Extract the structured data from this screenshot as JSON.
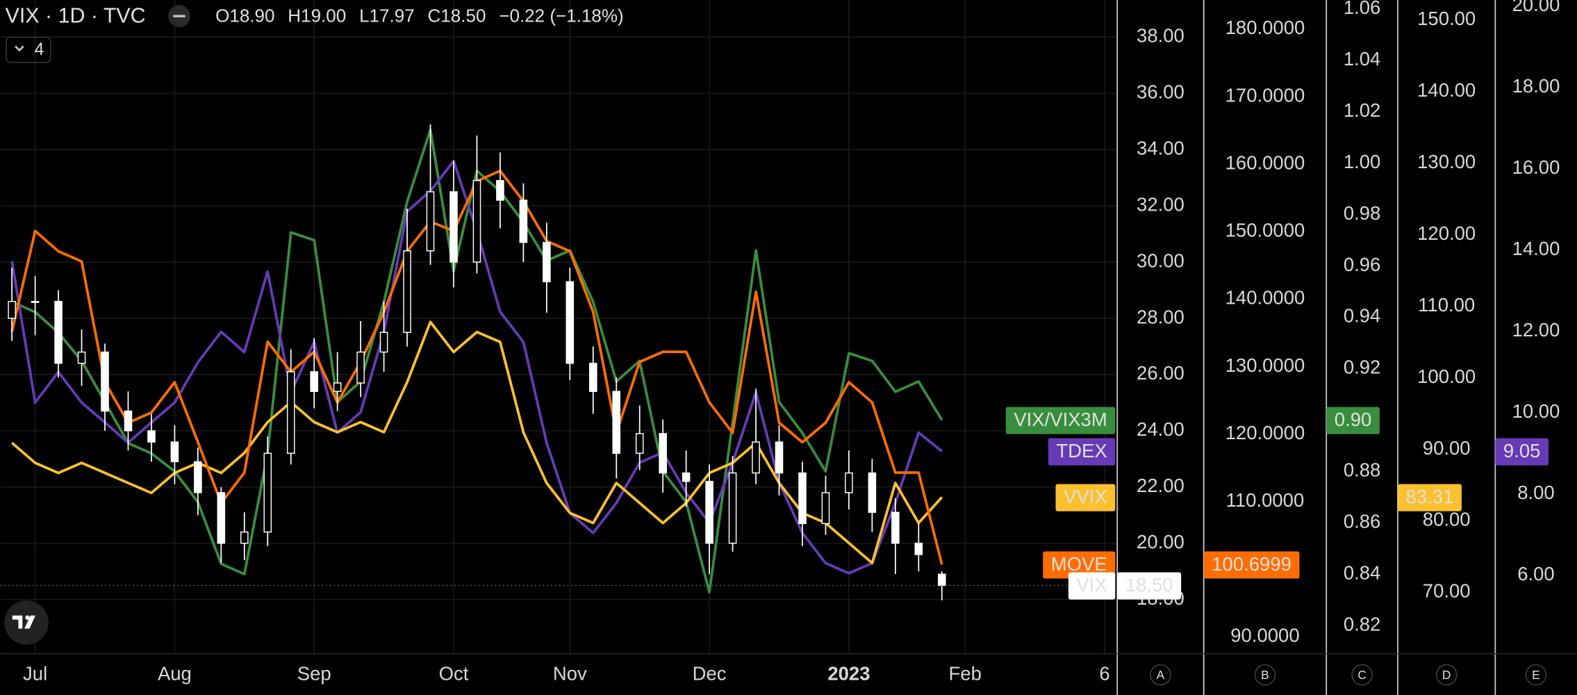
{
  "chart_data": {
    "type": "candlestick",
    "title": "VIX · 1D · TVC",
    "legend_values": [
      "O18.90",
      "H19.00",
      "L17.97",
      "C18.50",
      "−0.22 (−1.18%)"
    ],
    "indicators": 4,
    "categories": [
      null,
      "Jul",
      null,
      null,
      null,
      null,
      null,
      "Aug",
      null,
      null,
      null,
      null,
      null,
      "Sep",
      null,
      null,
      null,
      null,
      null,
      "Oct",
      null,
      null,
      null,
      null,
      "Nov",
      null,
      null,
      null,
      null,
      null,
      "Dec",
      null,
      null,
      null,
      null,
      null,
      "2023",
      null,
      null,
      null,
      null,
      "Feb",
      null,
      null,
      null,
      null,
      null,
      "6"
    ],
    "axes": [
      {
        "letter": "A",
        "ylim": [
          16.07,
          39.32
        ],
        "yticks": [
          {
            "value": 18,
            "label": "18.00"
          },
          {
            "value": 20,
            "label": "20.00"
          },
          {
            "value": 22,
            "label": "22.00"
          },
          {
            "value": 24,
            "label": "24.00"
          },
          {
            "value": 26,
            "label": "26.00"
          },
          {
            "value": 28,
            "label": "28.00"
          },
          {
            "value": 30,
            "label": "30.00"
          },
          {
            "value": 32,
            "label": "32.00"
          },
          {
            "value": 34,
            "label": "34.00"
          },
          {
            "value": 36,
            "label": "36.00"
          },
          {
            "value": 38,
            "label": "38.00"
          }
        ]
      },
      {
        "letter": "B",
        "ylim": [
          87.47,
          184.32
        ],
        "yticks": [
          {
            "value": 90,
            "label": "90.0000"
          },
          {
            "value": 110,
            "label": "110.0000"
          },
          {
            "value": 120,
            "label": "120.0000"
          },
          {
            "value": 130,
            "label": "130.0000"
          },
          {
            "value": 140,
            "label": "140.0000"
          },
          {
            "value": 150,
            "label": "150.0000"
          },
          {
            "value": 160,
            "label": "160.0000"
          },
          {
            "value": 170,
            "label": "170.0000"
          },
          {
            "value": 180,
            "label": "180.0000"
          }
        ]
      },
      {
        "letter": "C",
        "ylim": [
          0.809,
          1.0635
        ],
        "yticks": [
          {
            "value": 0.82,
            "label": "0.82"
          },
          {
            "value": 0.84,
            "label": "0.84"
          },
          {
            "value": 0.86,
            "label": "0.86"
          },
          {
            "value": 0.88,
            "label": "0.88"
          },
          {
            "value": 0.92,
            "label": "0.92"
          },
          {
            "value": 0.94,
            "label": "0.94"
          },
          {
            "value": 0.96,
            "label": "0.96"
          },
          {
            "value": 0.98,
            "label": "0.98"
          },
          {
            "value": 1,
            "label": "1.00"
          },
          {
            "value": 1.02,
            "label": "1.02"
          },
          {
            "value": 1.04,
            "label": "1.04"
          },
          {
            "value": 1.06,
            "label": "1.06"
          }
        ]
      },
      {
        "letter": "D",
        "ylim": [
          61.42,
          152.81
        ],
        "yticks": [
          {
            "value": 70,
            "label": "70.00"
          },
          {
            "value": 80,
            "label": "80.00"
          },
          {
            "value": 90,
            "label": "90.00"
          },
          {
            "value": 100,
            "label": "100.00"
          },
          {
            "value": 110,
            "label": "110.00"
          },
          {
            "value": 120,
            "label": "120.00"
          },
          {
            "value": 130,
            "label": "130.00"
          },
          {
            "value": 140,
            "label": "140.00"
          },
          {
            "value": 150,
            "label": "150.00"
          }
        ]
      },
      {
        "letter": "E",
        "ylim": [
          4.07,
          20.15
        ],
        "yticks": [
          {
            "value": 6,
            "label": "6.00"
          },
          {
            "value": 8,
            "label": "8.00"
          },
          {
            "value": 10,
            "label": "10.00"
          },
          {
            "value": 12,
            "label": "12.00"
          },
          {
            "value": 14,
            "label": "14.00"
          },
          {
            "value": 16,
            "label": "16.00"
          },
          {
            "value": 18,
            "label": "18.00"
          },
          {
            "value": 20,
            "label": "20.00"
          }
        ]
      }
    ],
    "ohlc": {
      "name": "VIX",
      "axis": "A",
      "color": "#ffffff",
      "last_label": "18.50",
      "open": [
        28.0,
        28.6,
        28.6,
        26.4,
        26.8,
        24.7,
        24.0,
        23.6,
        22.9,
        21.8,
        20.0,
        20.4,
        23.2,
        26.1,
        25.4,
        25.7,
        26.8,
        27.5,
        30.4,
        32.5,
        30.0,
        32.9,
        32.2,
        30.7,
        29.3,
        26.4,
        25.4,
        23.2,
        23.9,
        22.5,
        22.2,
        20.0,
        22.5,
        23.6,
        22.5,
        20.7,
        21.8,
        22.5,
        21.1,
        20.0,
        18.9,
        null,
        null,
        null,
        null,
        null,
        null,
        null
      ],
      "high": [
        29.8,
        29.5,
        29.0,
        27.6,
        27.1,
        25.4,
        24.6,
        24.2,
        23.4,
        22.0,
        21.1,
        23.8,
        26.9,
        27.3,
        26.8,
        27.9,
        28.6,
        31.9,
        34.9,
        33.6,
        34.5,
        33.9,
        32.8,
        31.4,
        29.8,
        27.0,
        25.9,
        24.9,
        24.4,
        23.3,
        22.8,
        23.1,
        25.5,
        24.2,
        22.9,
        22.4,
        23.3,
        23.0,
        21.6,
        20.7,
        19.0,
        null,
        null,
        null,
        null,
        null,
        null,
        null
      ],
      "low": [
        27.2,
        27.4,
        25.9,
        25.6,
        24.0,
        23.3,
        22.9,
        22.1,
        21.0,
        19.3,
        19.4,
        19.9,
        22.8,
        24.8,
        24.7,
        25.2,
        26.1,
        27.0,
        29.9,
        29.1,
        29.6,
        31.2,
        30.0,
        28.2,
        25.8,
        24.6,
        22.3,
        22.6,
        21.8,
        21.3,
        18.9,
        19.7,
        22.1,
        21.7,
        19.9,
        20.3,
        21.2,
        20.4,
        18.9,
        19.0,
        17.97,
        null,
        null,
        null,
        null,
        null,
        null,
        null
      ],
      "close": [
        28.6,
        28.6,
        26.4,
        26.8,
        24.7,
        24.0,
        23.6,
        22.9,
        21.8,
        20.0,
        20.4,
        23.2,
        26.1,
        25.4,
        25.7,
        26.8,
        27.5,
        30.4,
        32.5,
        30.0,
        32.9,
        32.2,
        30.7,
        29.3,
        26.4,
        25.4,
        23.2,
        23.9,
        22.5,
        22.2,
        20.0,
        22.5,
        23.6,
        22.5,
        20.7,
        21.8,
        22.5,
        21.1,
        20.0,
        19.6,
        18.5,
        null,
        null,
        null,
        null,
        null,
        null,
        null
      ]
    },
    "series": [
      {
        "name": "VIX/VIX3M",
        "type": "line",
        "axis": "C",
        "color": "#388e3c",
        "last_label": "0.90",
        "values": [
          0.946,
          0.942,
          0.934,
          0.923,
          0.907,
          0.891,
          0.887,
          0.88,
          0.868,
          0.844,
          0.84,
          0.887,
          0.973,
          0.97,
          0.907,
          0.915,
          0.946,
          0.985,
          1.013,
          0.958,
          0.997,
          0.989,
          0.977,
          0.962,
          0.966,
          0.946,
          0.915,
          0.923,
          0.88,
          0.868,
          0.833,
          0.899,
          0.966,
          0.907,
          0.895,
          0.88,
          0.926,
          0.923,
          0.911,
          0.915,
          0.9,
          null,
          null,
          null,
          null,
          null,
          null,
          null
        ]
      },
      {
        "name": "TDEX",
        "type": "line",
        "axis": "E",
        "color": "#673ab7",
        "last_label": "9.05",
        "values": [
          13.72,
          10.25,
          11.0,
          10.25,
          9.76,
          9.26,
          9.76,
          10.25,
          11.24,
          11.99,
          11.49,
          13.47,
          10.5,
          11.74,
          9.51,
          10.01,
          11.99,
          14.95,
          15.45,
          16.19,
          14.46,
          12.48,
          11.74,
          9.26,
          7.53,
          7.04,
          7.78,
          8.77,
          9.02,
          8.03,
          7.29,
          8.77,
          10.5,
          8.28,
          7.04,
          6.3,
          6.05,
          6.3,
          7.78,
          9.51,
          9.05,
          null,
          null,
          null,
          null,
          null,
          null,
          null
        ]
      },
      {
        "name": "VVIX",
        "type": "line",
        "axis": "D",
        "color": "#fbc02d",
        "last_label": "83.31",
        "values": [
          90.9,
          88.1,
          86.7,
          88.1,
          86.7,
          85.3,
          83.9,
          86.7,
          88.1,
          86.7,
          89.5,
          93.8,
          96.6,
          93.8,
          92.4,
          93.8,
          92.4,
          99.4,
          107.8,
          103.6,
          106.4,
          105.0,
          92.4,
          85.3,
          81.1,
          79.7,
          85.3,
          82.5,
          79.7,
          82.5,
          86.7,
          88.1,
          90.9,
          85.3,
          81.1,
          79.7,
          76.9,
          74.1,
          85.3,
          79.7,
          83.31,
          null,
          null,
          null,
          null,
          null,
          null,
          null
        ]
      },
      {
        "name": "MOVE",
        "type": "line",
        "axis": "B",
        "color": "#ff6d00",
        "last_label": "100.6999",
        "values": [
          135.2,
          150.1,
          147.1,
          145.6,
          127.7,
          121.7,
          123.2,
          127.7,
          118.8,
          109.8,
          114.3,
          133.7,
          129.2,
          132.2,
          124.7,
          130.7,
          138.1,
          147.1,
          151.5,
          150.1,
          157.5,
          159.0,
          154.5,
          148.6,
          147.1,
          138.1,
          120.2,
          130.7,
          132.2,
          132.2,
          124.7,
          120.2,
          141.1,
          121.7,
          118.8,
          121.7,
          127.7,
          124.7,
          114.3,
          114.3,
          100.6999,
          null,
          null,
          null,
          null,
          null,
          null,
          null
        ]
      }
    ],
    "grid": true
  }
}
